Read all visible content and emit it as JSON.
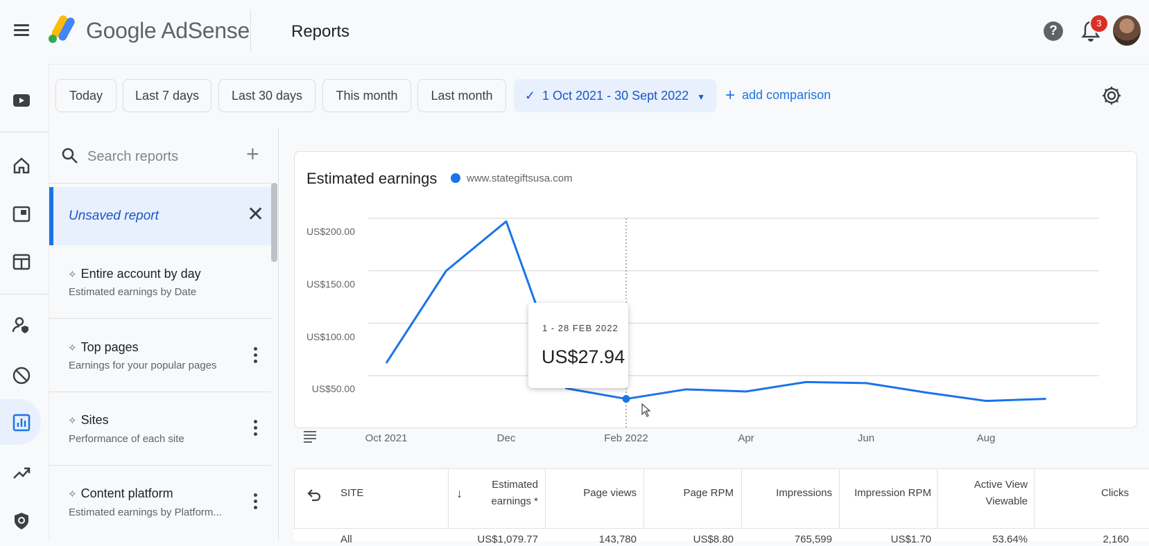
{
  "header": {
    "brand": "Google AdSense",
    "page_title": "Reports",
    "help_symbol": "?",
    "notification_count": "3"
  },
  "toolbar": {
    "chips": [
      "Today",
      "Last 7 days",
      "Last 30 days",
      "This month",
      "Last month"
    ],
    "date_range": "1 Oct 2021 - 30 Sept 2022",
    "add_comparison": "add comparison"
  },
  "sidebar": {
    "search_placeholder": "Search reports",
    "unsaved_report": "Unsaved report",
    "items": [
      {
        "title": "Entire account by day",
        "subtitle": "Estimated earnings by Date"
      },
      {
        "title": "Top pages",
        "subtitle": "Earnings for your popular pages"
      },
      {
        "title": "Sites",
        "subtitle": "Performance of each site"
      },
      {
        "title": "Content platform",
        "subtitle": "Estimated earnings by Platform..."
      }
    ]
  },
  "chart_card": {
    "title": "Estimated earnings",
    "tooltip": {
      "date": "1 - 28 FEB 2022",
      "value": "US$27.94"
    }
  },
  "chart_data": {
    "type": "line",
    "title": "Estimated earnings",
    "x": [
      "Oct 2021",
      "Nov 2021",
      "Dec 2021",
      "Jan 2022",
      "Feb 2022",
      "Mar 2022",
      "Apr 2022",
      "May 2022",
      "Jun 2022",
      "Jul 2022",
      "Aug 2022",
      "Sep 2022"
    ],
    "x_tick_labels": [
      "Oct 2021",
      "Dec",
      "Feb 2022",
      "Apr",
      "Jun",
      "Aug"
    ],
    "x_tick_index": [
      0,
      2,
      4,
      6,
      8,
      10
    ],
    "y_tick_labels": [
      "US$200.00",
      "US$150.00",
      "US$100.00",
      "US$50.00"
    ],
    "y_ticks": [
      200,
      150,
      100,
      50
    ],
    "ylim": [
      0,
      200
    ],
    "series": [
      {
        "name": "www.stategiftsusa.com",
        "color": "#1a73e8",
        "values": [
          62,
          150,
          197,
          38,
          27.94,
          37,
          35,
          44,
          43,
          34,
          26,
          28
        ]
      }
    ],
    "highlight_index": 4,
    "grid": true
  },
  "table": {
    "headers": [
      "SITE",
      "Estimated earnings *",
      "Page views",
      "Page RPM",
      "Impressions",
      "Impression RPM",
      "Active View Viewable",
      "Clicks"
    ],
    "first_row": [
      "All",
      "US$1,079.77",
      "143,780",
      "US$8.80",
      "765,599",
      "US$1.70",
      "53.64%",
      "2,160"
    ]
  }
}
